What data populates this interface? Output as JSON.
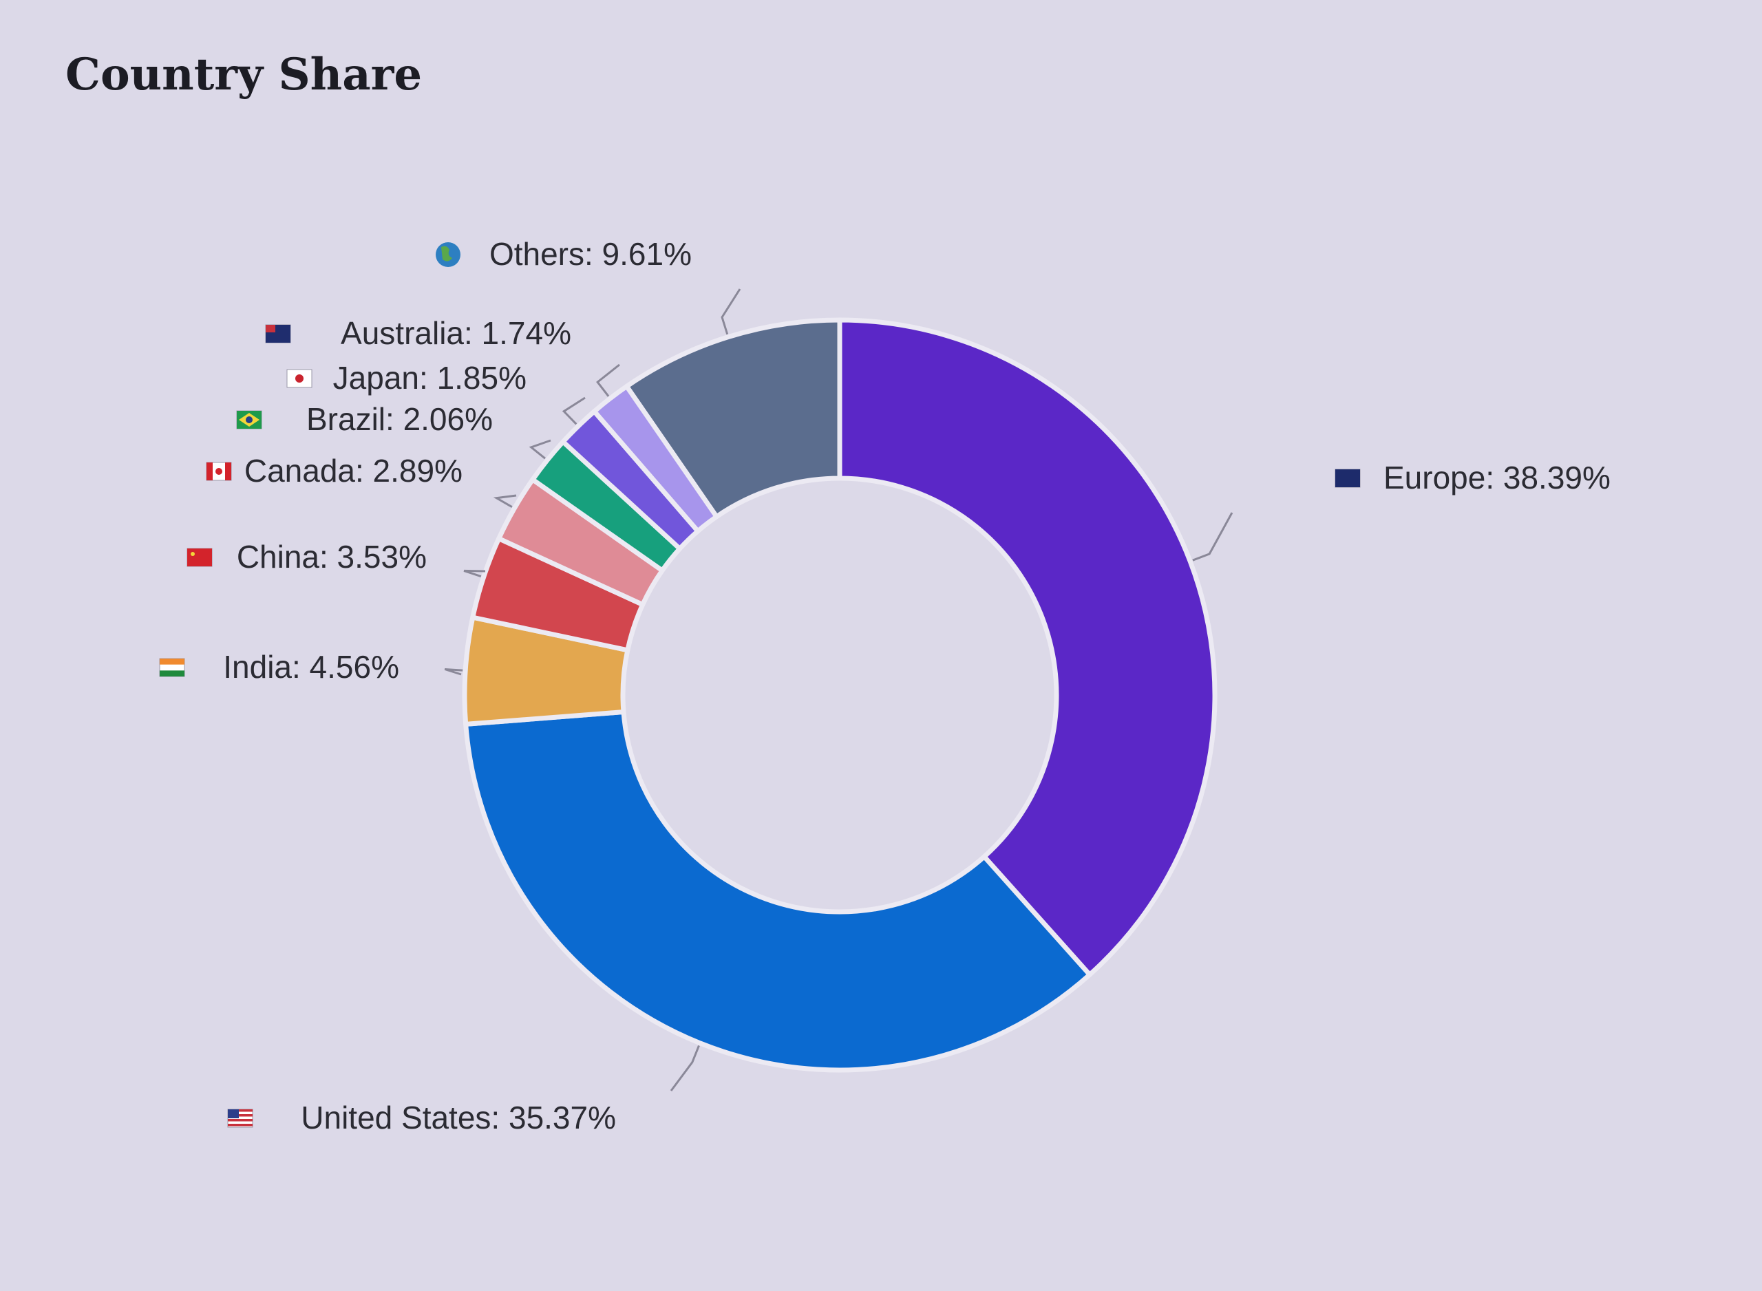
{
  "chart_data": {
    "type": "donut",
    "title": "Country Share",
    "slices": [
      {
        "label": "Europe",
        "value": 38.39,
        "text": "Europe: 38.39%",
        "color": "#5b27c7",
        "icon": "eu-flag-icon"
      },
      {
        "label": "United States",
        "value": 35.37,
        "text": "United States: 35.37%",
        "color": "#0b6ad0",
        "icon": "us-flag-icon"
      },
      {
        "label": "India",
        "value": 4.56,
        "text": "India: 4.56%",
        "color": "#e3a74f",
        "icon": "india-flag-icon"
      },
      {
        "label": "China",
        "value": 3.53,
        "text": "China: 3.53%",
        "color": "#d2464e",
        "icon": "china-flag-icon"
      },
      {
        "label": "Canada",
        "value": 2.89,
        "text": "Canada: 2.89%",
        "color": "#df8b96",
        "icon": "canada-flag-icon"
      },
      {
        "label": "Brazil",
        "value": 2.06,
        "text": "Brazil: 2.06%",
        "color": "#17a07d",
        "icon": "brazil-flag-icon"
      },
      {
        "label": "Japan",
        "value": 1.85,
        "text": "Japan: 1.85%",
        "color": "#7156db",
        "icon": "japan-flag-icon"
      },
      {
        "label": "Australia",
        "value": 1.74,
        "text": "Australia: 1.74%",
        "color": "#a795ec",
        "icon": "australia-flag-icon"
      },
      {
        "label": "Others",
        "value": 9.61,
        "text": "Others: 9.61%",
        "color": "#5b6d8e",
        "icon": "globe-icon"
      }
    ],
    "start_angle_deg": 0,
    "direction": "clockwise",
    "legend": "none"
  }
}
